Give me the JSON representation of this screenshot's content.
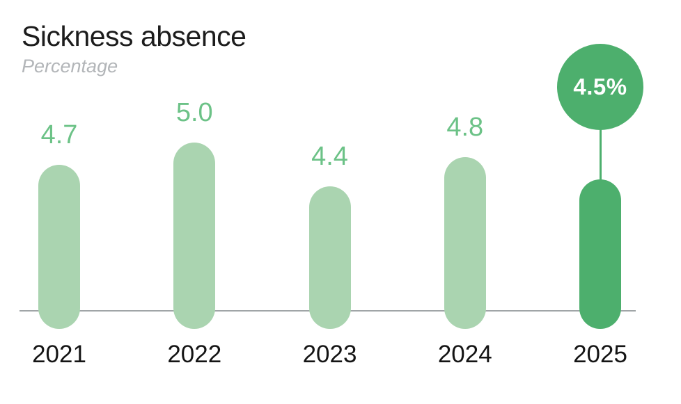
{
  "header": {
    "title": "Sickness absence",
    "subtitle": "Percentage"
  },
  "chart_data": {
    "type": "bar",
    "title": "Sickness absence",
    "subtitle": "Percentage",
    "ylabel": "Percentage",
    "xlabel": "",
    "categories": [
      "2021",
      "2022",
      "2023",
      "2024",
      "2025"
    ],
    "values": [
      4.7,
      5.0,
      4.4,
      4.8,
      4.5
    ],
    "value_labels": [
      "4.7",
      "5.0",
      "4.4",
      "4.8",
      "4.5%"
    ],
    "highlight_category": "2025",
    "highlight_index": 4,
    "highlight_label": "4.5%",
    "bar_style": "rounded-pill, bars cross below the baseline",
    "y_axis_ticks": "none (values labeled directly above bars)",
    "grid": false,
    "legend": false,
    "colors": {
      "bar_fill": "#aad4b0",
      "highlight_fill": "#4daf6d",
      "value_label": "#6cc287",
      "year_label": "#141414",
      "title": "#1c1c1c",
      "subtitle": "#b2b5b8",
      "axis_line": "#a0a5a7",
      "bubble_text": "#ffffff"
    }
  }
}
